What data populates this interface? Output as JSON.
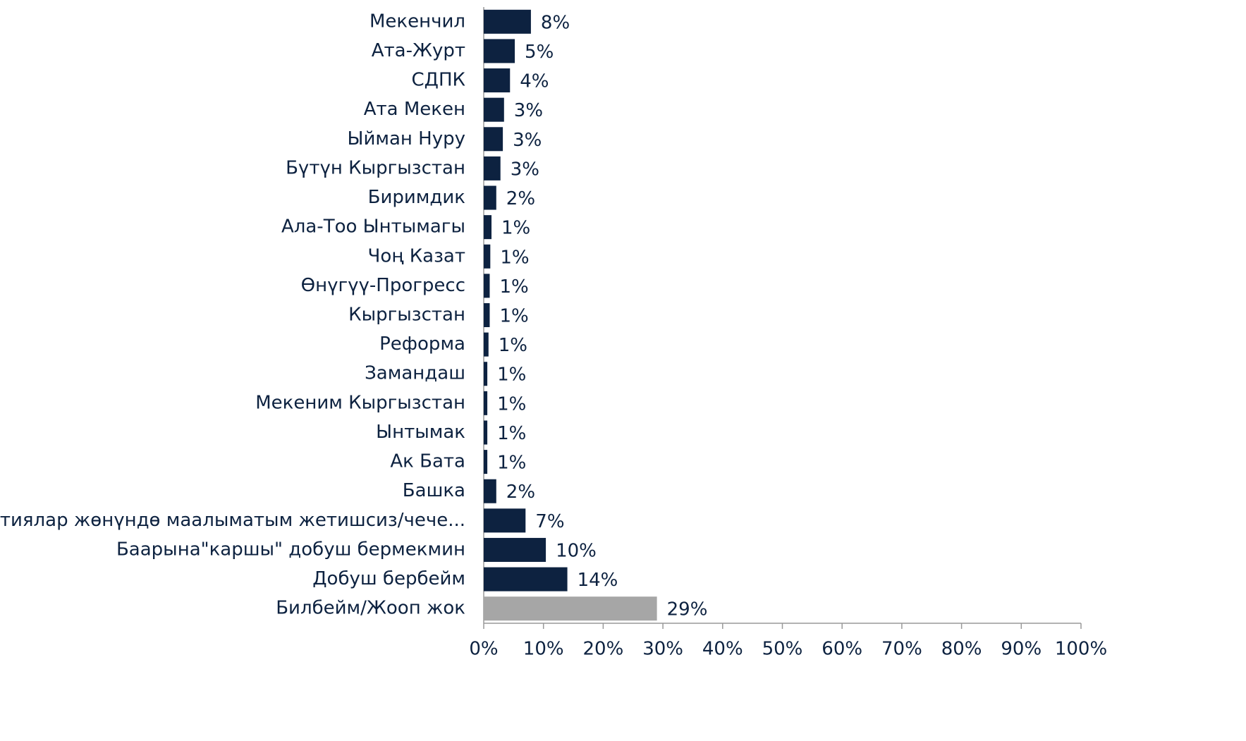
{
  "chart_data": {
    "type": "hbar",
    "categories": [
      "Мекенчил",
      "Ата-Журт",
      "СДПК",
      "Ата Мекен",
      "Ыйман Нуру",
      "Бүтүн Кыргызстан",
      "Биримдик",
      "Ала-Тоо Ынтымагы",
      "Чоң Казат",
      "Өнүгүү-Прогресс",
      "Кыргызстан",
      "Реформа",
      "Замандаш",
      "Мекеним Кыргызстан",
      "Ынтымак",
      "Ак Бата",
      "Башка",
      "Партиялар жөнүндө маалыматым жетишсиз/чече...",
      "Баарына\"каршы\" добуш бермекмин",
      "Добуш бербейм",
      "Билбейм/Жооп жок"
    ],
    "values": [
      7.9,
      5.2,
      4.4,
      3.4,
      3.2,
      2.8,
      2.1,
      1.3,
      1.1,
      1.0,
      1.0,
      0.8,
      0.6,
      0.6,
      0.6,
      0.6,
      2.1,
      7.0,
      10.4,
      14.0,
      29.0
    ],
    "value_labels": [
      "8%",
      "5%",
      "4%",
      "3%",
      "3%",
      "3%",
      "2%",
      "1%",
      "1%",
      "1%",
      "1%",
      "1%",
      "1%",
      "1%",
      "1%",
      "1%",
      "2%",
      "7%",
      "10%",
      "14%",
      "29%"
    ],
    "colors": [
      "#0d2240",
      "#0d2240",
      "#0d2240",
      "#0d2240",
      "#0d2240",
      "#0d2240",
      "#0d2240",
      "#0d2240",
      "#0d2240",
      "#0d2240",
      "#0d2240",
      "#0d2240",
      "#0d2240",
      "#0d2240",
      "#0d2240",
      "#0d2240",
      "#0d2240",
      "#0d2240",
      "#0d2240",
      "#0d2240",
      "#a6a6a6"
    ],
    "xlim": [
      0,
      100
    ],
    "xticks": [
      {
        "value": 0,
        "label": "0%"
      },
      {
        "value": 10,
        "label": "10%"
      },
      {
        "value": 20,
        "label": "20%"
      },
      {
        "value": 30,
        "label": "30%"
      },
      {
        "value": 40,
        "label": "40%"
      },
      {
        "value": 50,
        "label": "50%"
      },
      {
        "value": 60,
        "label": "60%"
      },
      {
        "value": 70,
        "label": "70%"
      },
      {
        "value": 80,
        "label": "80%"
      },
      {
        "value": 90,
        "label": "90%"
      },
      {
        "value": 100,
        "label": "100%"
      }
    ]
  }
}
